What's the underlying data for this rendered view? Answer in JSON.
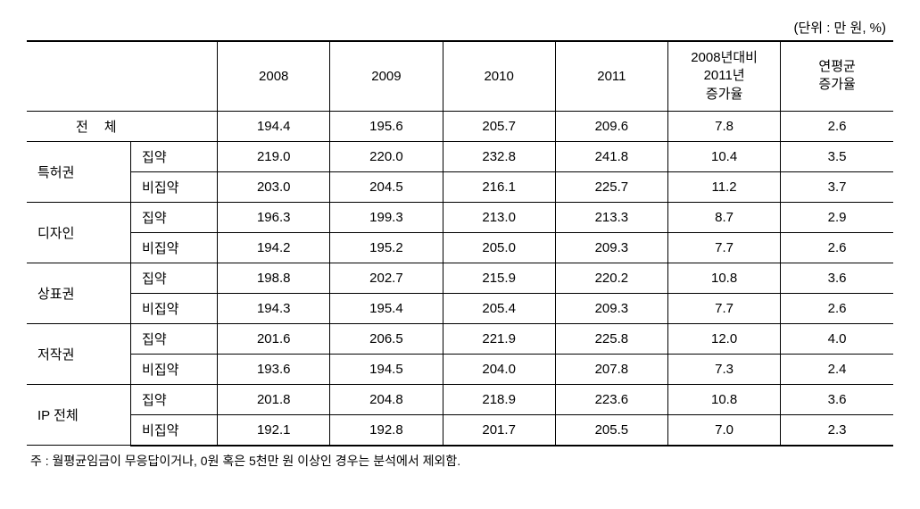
{
  "unit_label": "(단위 : 만 원, %)",
  "columns": {
    "blank": "",
    "y2008": "2008",
    "y2009": "2009",
    "y2010": "2010",
    "y2011": "2011",
    "growth_2008_2011": "2008년대비\n2011년\n증가율",
    "avg_growth": "연평균\n증가율"
  },
  "total_row": {
    "label": "전체",
    "y2008": "194.4",
    "y2009": "195.6",
    "y2010": "205.7",
    "y2011": "209.6",
    "growth": "7.8",
    "avg": "2.6"
  },
  "groups": [
    {
      "name": "특허권",
      "rows": [
        {
          "label": "집약",
          "y2008": "219.0",
          "y2009": "220.0",
          "y2010": "232.8",
          "y2011": "241.8",
          "growth": "10.4",
          "avg": "3.5"
        },
        {
          "label": "비집약",
          "y2008": "203.0",
          "y2009": "204.5",
          "y2010": "216.1",
          "y2011": "225.7",
          "growth": "11.2",
          "avg": "3.7"
        }
      ]
    },
    {
      "name": "디자인",
      "rows": [
        {
          "label": "집약",
          "y2008": "196.3",
          "y2009": "199.3",
          "y2010": "213.0",
          "y2011": "213.3",
          "growth": "8.7",
          "avg": "2.9"
        },
        {
          "label": "비집약",
          "y2008": "194.2",
          "y2009": "195.2",
          "y2010": "205.0",
          "y2011": "209.3",
          "growth": "7.7",
          "avg": "2.6"
        }
      ]
    },
    {
      "name": "상표권",
      "rows": [
        {
          "label": "집약",
          "y2008": "198.8",
          "y2009": "202.7",
          "y2010": "215.9",
          "y2011": "220.2",
          "growth": "10.8",
          "avg": "3.6"
        },
        {
          "label": "비집약",
          "y2008": "194.3",
          "y2009": "195.4",
          "y2010": "205.4",
          "y2011": "209.3",
          "growth": "7.7",
          "avg": "2.6"
        }
      ]
    },
    {
      "name": "저작권",
      "rows": [
        {
          "label": "집약",
          "y2008": "201.6",
          "y2009": "206.5",
          "y2010": "221.9",
          "y2011": "225.8",
          "growth": "12.0",
          "avg": "4.0"
        },
        {
          "label": "비집약",
          "y2008": "193.6",
          "y2009": "194.5",
          "y2010": "204.0",
          "y2011": "207.8",
          "growth": "7.3",
          "avg": "2.4"
        }
      ]
    },
    {
      "name": "IP 전체",
      "rows": [
        {
          "label": "집약",
          "y2008": "201.8",
          "y2009": "204.8",
          "y2010": "218.9",
          "y2011": "223.6",
          "growth": "10.8",
          "avg": "3.6"
        },
        {
          "label": "비집약",
          "y2008": "192.1",
          "y2009": "192.8",
          "y2010": "201.7",
          "y2011": "205.5",
          "growth": "7.0",
          "avg": "2.3"
        }
      ]
    }
  ],
  "footnote": "주 : 월평균임금이 무응답이거나, 0원 혹은 5천만 원 이상인 경우는 분석에서 제외함.",
  "styling": {
    "font_family": "Malgun Gothic",
    "font_size_body": 15,
    "font_size_footnote": 14,
    "border_top_width": 2,
    "border_bottom_width": 2,
    "border_inner_width": 1,
    "border_color": "#000000",
    "background_color": "#ffffff",
    "col_widths_pct": [
      12,
      10,
      13,
      13,
      13,
      13,
      13,
      13
    ]
  }
}
